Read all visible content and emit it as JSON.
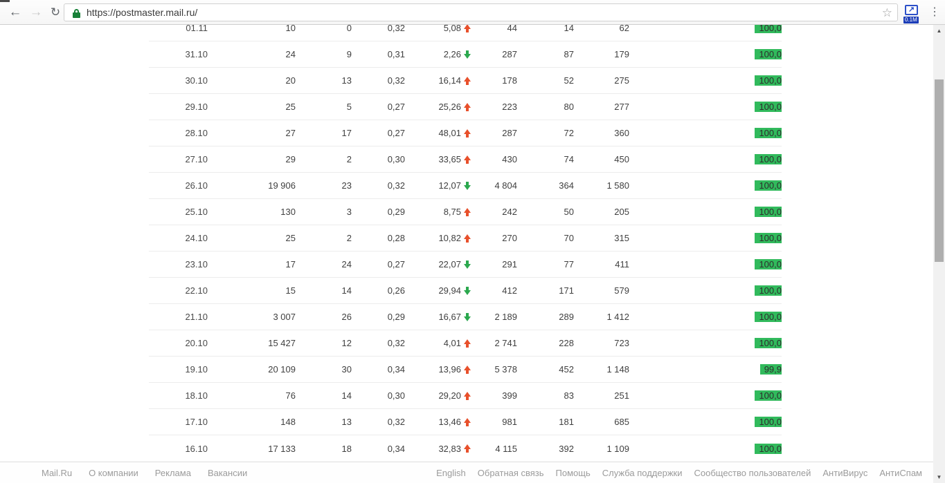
{
  "browser": {
    "url": "https://postmaster.mail.ru/",
    "extension_badge": "0.1M",
    "back_icon": "←",
    "forward_icon": "→",
    "reload_icon": "↻",
    "star_icon": "☆",
    "menu_icon": "⋮",
    "extension_glyph": "↗"
  },
  "colors": {
    "bar_green": "#31ba5c",
    "arrow_up_red": "#e8502b",
    "arrow_down_green": "#2ba84e",
    "lock_green": "#188038"
  },
  "table": {
    "rows": [
      {
        "date": "01.11",
        "c1": "10",
        "c2": "0",
        "c3": "0,32",
        "pct": "5,08",
        "dir": "up",
        "c4": "44",
        "c5": "14",
        "c6": "62",
        "bar": "100,0",
        "bar_pct": 100
      },
      {
        "date": "31.10",
        "c1": "24",
        "c2": "9",
        "c3": "0,31",
        "pct": "2,26",
        "dir": "down",
        "c4": "287",
        "c5": "87",
        "c6": "179",
        "bar": "100,0",
        "bar_pct": 100
      },
      {
        "date": "30.10",
        "c1": "20",
        "c2": "13",
        "c3": "0,32",
        "pct": "16,14",
        "dir": "up",
        "c4": "178",
        "c5": "52",
        "c6": "275",
        "bar": "100,0",
        "bar_pct": 100
      },
      {
        "date": "29.10",
        "c1": "25",
        "c2": "5",
        "c3": "0,27",
        "pct": "25,26",
        "dir": "up",
        "c4": "223",
        "c5": "80",
        "c6": "277",
        "bar": "100,0",
        "bar_pct": 100
      },
      {
        "date": "28.10",
        "c1": "27",
        "c2": "17",
        "c3": "0,27",
        "pct": "48,01",
        "dir": "up",
        "c4": "287",
        "c5": "72",
        "c6": "360",
        "bar": "100,0",
        "bar_pct": 100
      },
      {
        "date": "27.10",
        "c1": "29",
        "c2": "2",
        "c3": "0,30",
        "pct": "33,65",
        "dir": "up",
        "c4": "430",
        "c5": "74",
        "c6": "450",
        "bar": "100,0",
        "bar_pct": 100
      },
      {
        "date": "26.10",
        "c1": "19 906",
        "c2": "23",
        "c3": "0,32",
        "pct": "12,07",
        "dir": "down",
        "c4": "4 804",
        "c5": "364",
        "c6": "1 580",
        "bar": "100,0",
        "bar_pct": 100
      },
      {
        "date": "25.10",
        "c1": "130",
        "c2": "3",
        "c3": "0,29",
        "pct": "8,75",
        "dir": "up",
        "c4": "242",
        "c5": "50",
        "c6": "205",
        "bar": "100,0",
        "bar_pct": 100
      },
      {
        "date": "24.10",
        "c1": "25",
        "c2": "2",
        "c3": "0,28",
        "pct": "10,82",
        "dir": "up",
        "c4": "270",
        "c5": "70",
        "c6": "315",
        "bar": "100,0",
        "bar_pct": 100
      },
      {
        "date": "23.10",
        "c1": "17",
        "c2": "24",
        "c3": "0,27",
        "pct": "22,07",
        "dir": "down",
        "c4": "291",
        "c5": "77",
        "c6": "411",
        "bar": "100,0",
        "bar_pct": 100
      },
      {
        "date": "22.10",
        "c1": "15",
        "c2": "14",
        "c3": "0,26",
        "pct": "29,94",
        "dir": "down",
        "c4": "412",
        "c5": "171",
        "c6": "579",
        "bar": "100,0",
        "bar_pct": 100
      },
      {
        "date": "21.10",
        "c1": "3 007",
        "c2": "26",
        "c3": "0,29",
        "pct": "16,67",
        "dir": "down",
        "c4": "2 189",
        "c5": "289",
        "c6": "1 412",
        "bar": "100,0",
        "bar_pct": 100
      },
      {
        "date": "20.10",
        "c1": "15 427",
        "c2": "12",
        "c3": "0,32",
        "pct": "4,01",
        "dir": "up",
        "c4": "2 741",
        "c5": "228",
        "c6": "723",
        "bar": "100,0",
        "bar_pct": 100
      },
      {
        "date": "19.10",
        "c1": "20 109",
        "c2": "30",
        "c3": "0,34",
        "pct": "13,96",
        "dir": "up",
        "c4": "5 378",
        "c5": "452",
        "c6": "1 148",
        "bar": "99,9",
        "bar_pct": 99.9
      },
      {
        "date": "18.10",
        "c1": "76",
        "c2": "14",
        "c3": "0,30",
        "pct": "29,20",
        "dir": "up",
        "c4": "399",
        "c5": "83",
        "c6": "251",
        "bar": "100,0",
        "bar_pct": 100
      },
      {
        "date": "17.10",
        "c1": "148",
        "c2": "13",
        "c3": "0,32",
        "pct": "13,46",
        "dir": "up",
        "c4": "981",
        "c5": "181",
        "c6": "685",
        "bar": "100,0",
        "bar_pct": 100
      },
      {
        "date": "16.10",
        "c1": "17 133",
        "c2": "18",
        "c3": "0,34",
        "pct": "32,83",
        "dir": "up",
        "c4": "4 115",
        "c5": "392",
        "c6": "1 109",
        "bar": "100,0",
        "bar_pct": 100
      }
    ]
  },
  "footer": {
    "left": [
      "Mail.Ru",
      "О компании",
      "Реклама",
      "Вакансии"
    ],
    "right": [
      "English",
      "Обратная связь",
      "Помощь",
      "Служба поддержки",
      "Сообщество пользователей",
      "АнтиВирус",
      "АнтиСпам"
    ]
  },
  "scrollbar": {
    "up_icon": "▲",
    "down_icon": "▼"
  }
}
